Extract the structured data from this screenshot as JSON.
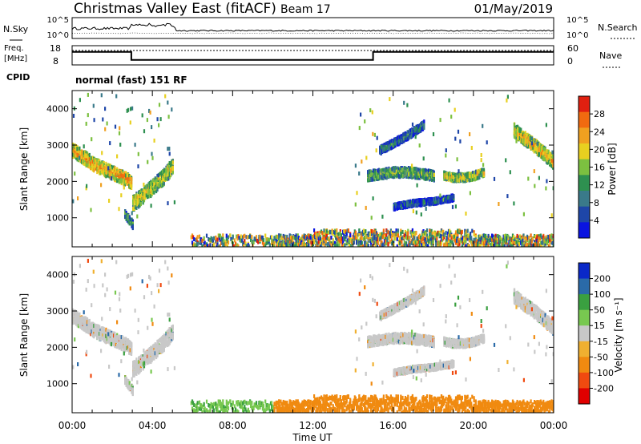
{
  "header": {
    "title": "Christmas Valley East (fitACF)",
    "beam": "Beam 17",
    "date": "01/May/2019"
  },
  "noise_panel": {
    "left_label": "N.Sky",
    "right_label": "N.Search",
    "left_ticks": [
      "10^5",
      "10^0"
    ],
    "right_ticks": [
      "10^5",
      "10^0"
    ]
  },
  "freq_panel": {
    "left_label_1": "Freq.",
    "left_label_2": "[MHz]",
    "right_label": "Nave",
    "left_ticks": [
      "18",
      "8"
    ],
    "right_ticks": [
      "60",
      "0"
    ],
    "cpid_label": "CPID",
    "cpid_text": "normal (fast) 151 RF"
  },
  "colors": {
    "power": [
      "#0a14e0",
      "#1e46a8",
      "#3a7a8a",
      "#2e9050",
      "#7cc040",
      "#e8d020",
      "#f0a020",
      "#f06a10",
      "#e02010"
    ],
    "velocity": [
      "#e00000",
      "#f04a10",
      "#f08a10",
      "#f0b030",
      "#c8c8c8",
      "#78c850",
      "#3aa040",
      "#2a6aa8",
      "#0a28c8"
    ],
    "grey_scatter": "#c8c8c8"
  },
  "chart_data": [
    {
      "type": "heatmap",
      "name": "power",
      "ylabel": "Slant Range [km]",
      "ylim": [
        200,
        4500
      ],
      "yticks": [
        "1000",
        "2000",
        "3000",
        "4000"
      ],
      "xlim": [
        0,
        24
      ],
      "colorbar": {
        "label": "Power [dB]",
        "ticks": [
          "4",
          "8",
          "12",
          "16",
          "20",
          "24",
          "28"
        ],
        "range": [
          0,
          32
        ]
      },
      "echo_bands": [
        {
          "t": [
            0.0,
            0.3,
            0.7,
            1.1,
            1.5,
            1.9,
            2.3,
            2.7,
            2.95
          ],
          "r": [
            2850,
            2750,
            2600,
            2450,
            2350,
            2250,
            2150,
            2050,
            1950
          ],
          "w": 350,
          "p": 22
        },
        {
          "t": [
            2.6,
            2.8,
            3.0
          ],
          "r": [
            1100,
            950,
            800
          ],
          "w": 200,
          "p": 12
        },
        {
          "t": [
            3.0,
            3.4,
            3.8,
            4.2,
            4.6,
            5.0
          ],
          "r": [
            1400,
            1550,
            1750,
            1950,
            2150,
            2450
          ],
          "w": 400,
          "p": 18
        },
        {
          "t": [
            14.7,
            15.3,
            16.0,
            16.7,
            17.4,
            18.0
          ],
          "r": [
            2150,
            2200,
            2250,
            2250,
            2200,
            2150
          ],
          "w": 250,
          "p": 14
        },
        {
          "t": [
            18.5,
            19.0,
            19.5,
            20.0,
            20.5
          ],
          "r": [
            2150,
            2100,
            2100,
            2150,
            2250
          ],
          "w": 200,
          "p": 18
        },
        {
          "t": [
            15.3,
            16.0,
            16.8,
            17.5
          ],
          "r": [
            2850,
            3050,
            3300,
            3550
          ],
          "w": 200,
          "p": 10
        },
        {
          "t": [
            16.0,
            17.0,
            18.0,
            19.0
          ],
          "r": [
            1300,
            1400,
            1450,
            1550
          ],
          "w": 150,
          "p": 8
        },
        {
          "t": [
            22.0,
            22.6,
            23.2,
            23.8,
            24.0
          ],
          "r": [
            3400,
            3150,
            2900,
            2600,
            2500
          ],
          "w": 350,
          "p": 20
        }
      ],
      "ground_band": {
        "t": [
          5.9,
          24.0
        ],
        "r": [
          200,
          550
        ],
        "p": 12
      }
    },
    {
      "type": "heatmap",
      "name": "velocity",
      "ylabel": "Slant Range [km]",
      "ylim": [
        200,
        4500
      ],
      "yticks": [
        "1000",
        "2000",
        "3000",
        "4000"
      ],
      "xlim": [
        0,
        24
      ],
      "xticks": [
        "00:00",
        "04:00",
        "08:00",
        "12:00",
        "16:00",
        "20:00",
        "00:00"
      ],
      "xlabel": "Time UT",
      "colorbar": {
        "label": "Velocity [m s⁻¹]",
        "ticks": [
          "200",
          "100",
          "50",
          "15",
          "-15",
          "-50",
          "-100",
          "-200"
        ]
      },
      "ground_velocity": [
        {
          "t": [
            5.9,
            10.0
          ],
          "v": 40
        },
        {
          "t": [
            10.0,
            24.0
          ],
          "v": -70
        }
      ]
    },
    {
      "type": "line",
      "name": "frequency",
      "x": [
        0,
        2.95,
        2.95,
        15.0,
        15.0,
        24.0
      ],
      "values": [
        14.8,
        14.8,
        10.6,
        10.6,
        14.8,
        14.8
      ],
      "ylim": [
        8,
        18
      ],
      "nave": 45
    }
  ]
}
